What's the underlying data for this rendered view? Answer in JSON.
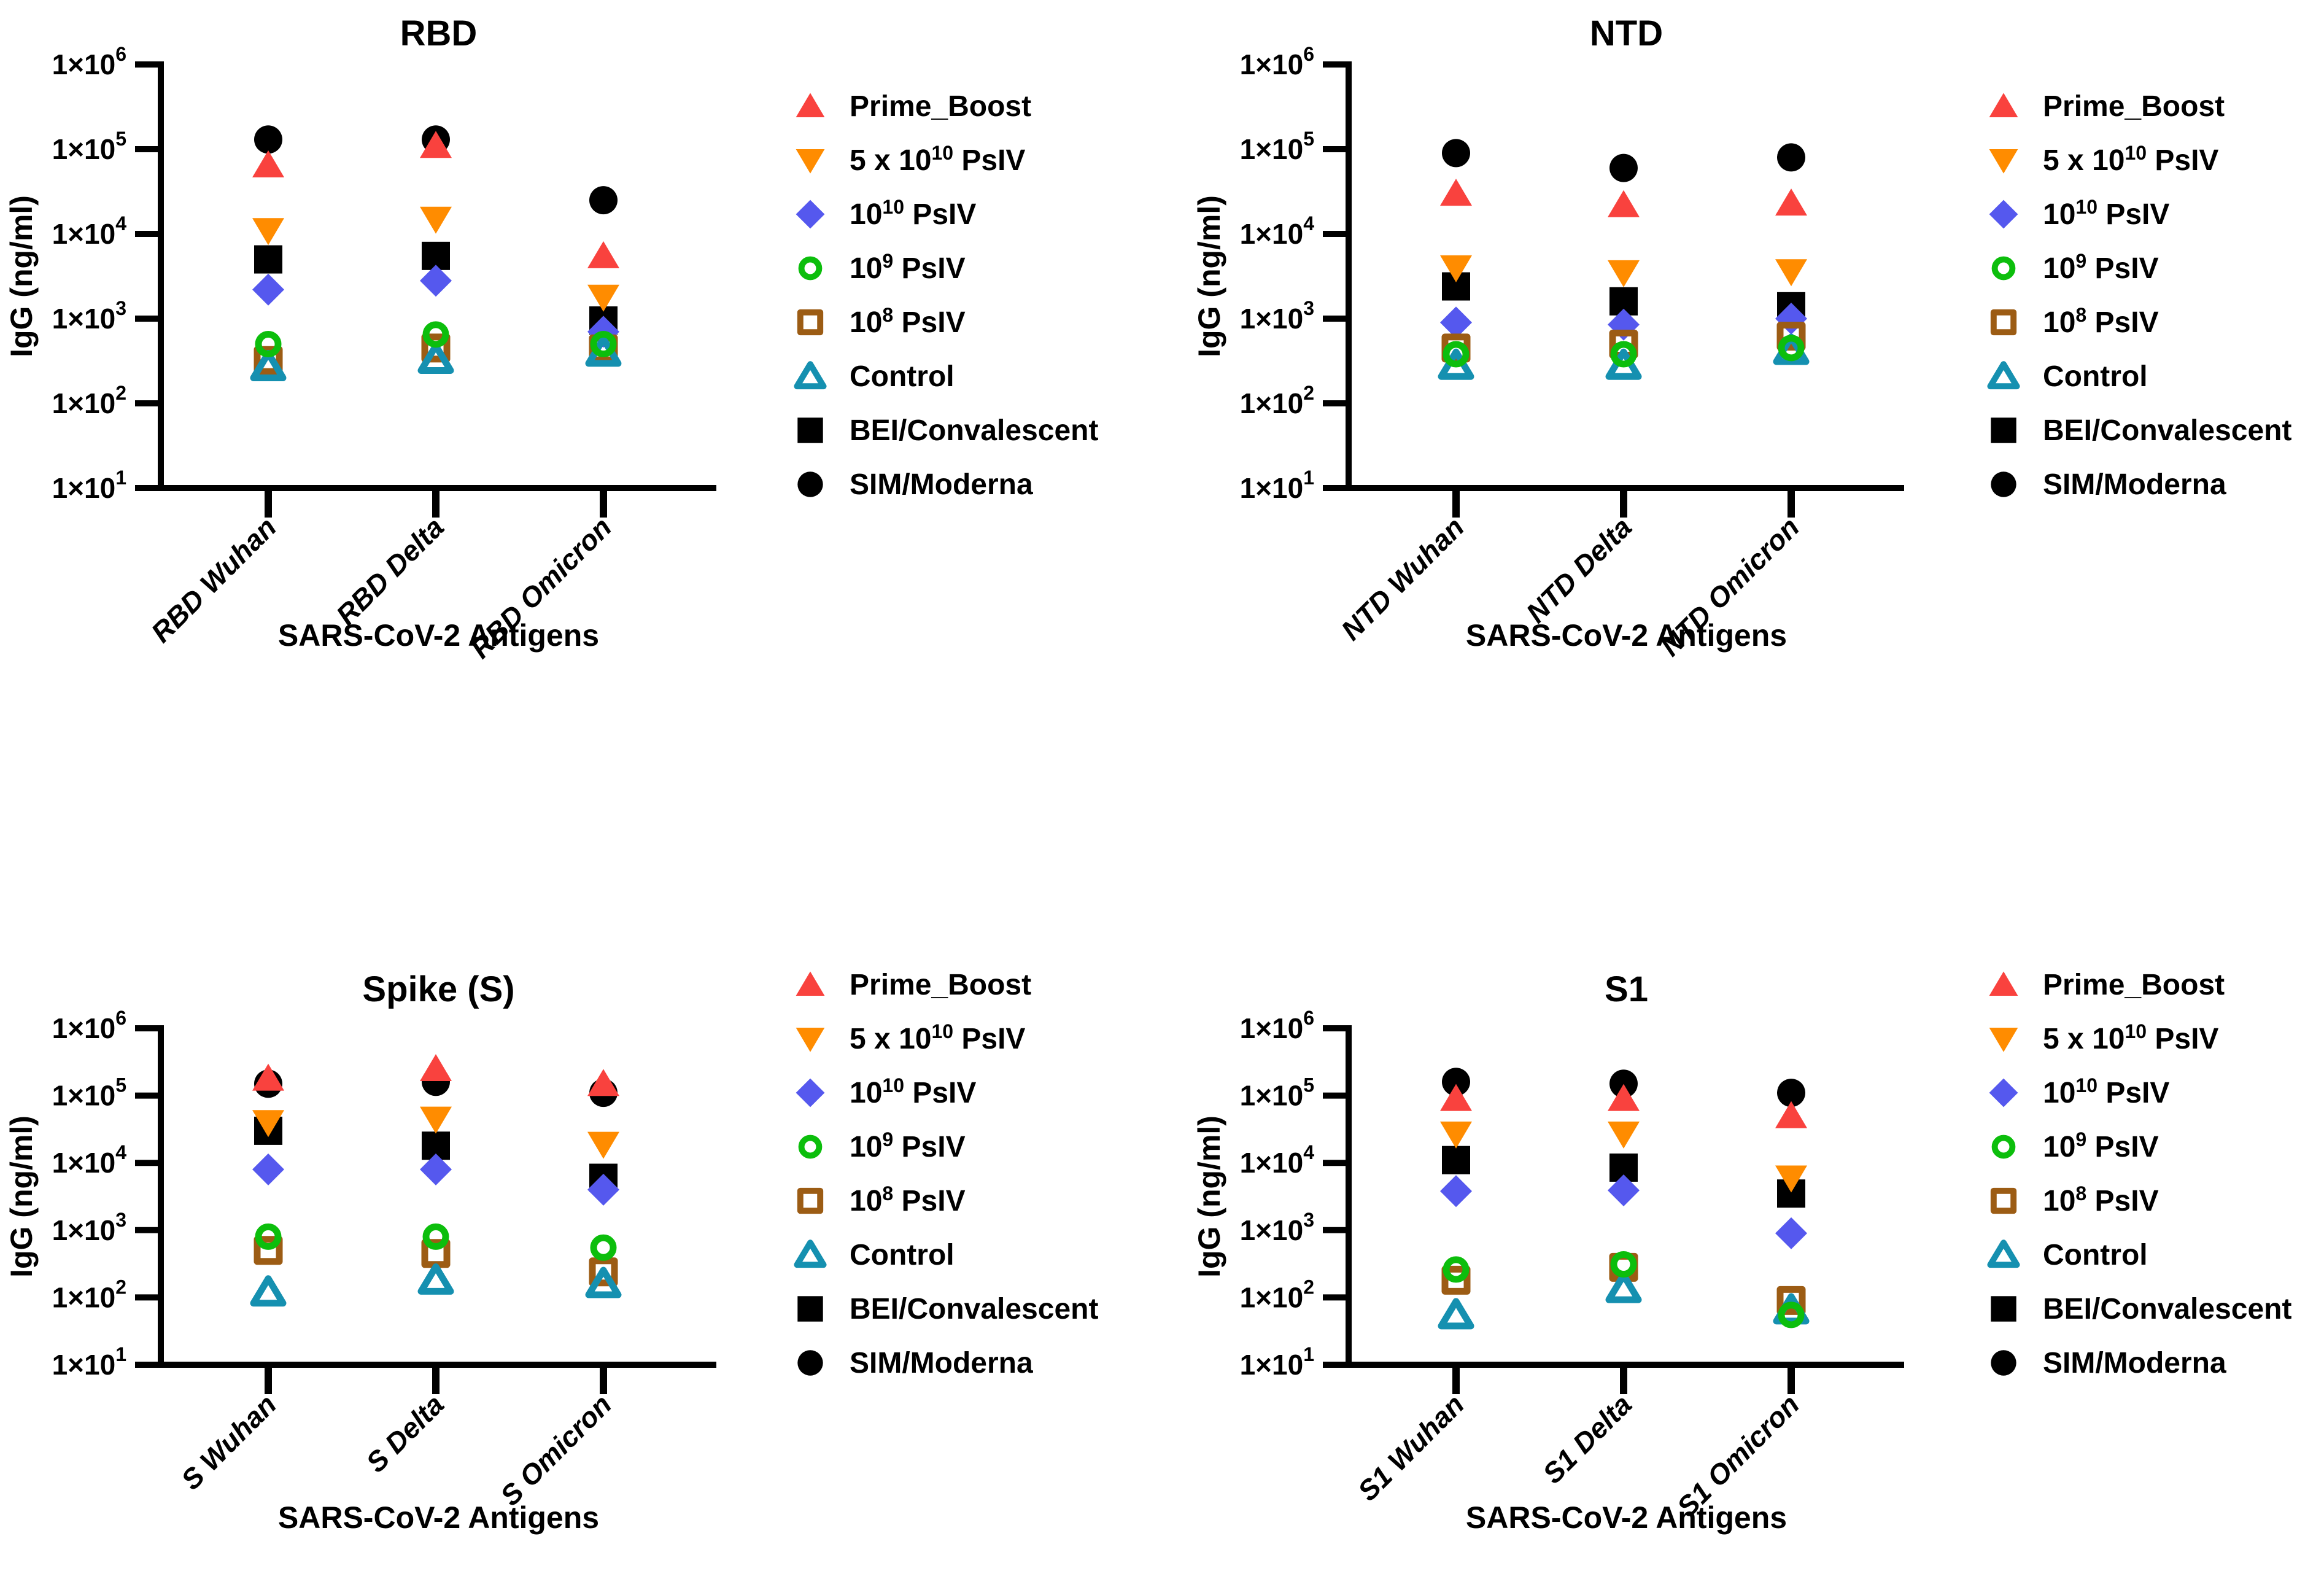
{
  "figure": {
    "background": "#FFFFFF"
  },
  "y_axis": {
    "label": "IgG (ng/ml)",
    "tick_base": "1×10",
    "tick_exponents": [
      "6",
      "5",
      "4",
      "3",
      "2",
      "1"
    ]
  },
  "x_axis": {
    "label": "SARS-CoV-2 Antigens"
  },
  "legend_entries": [
    {
      "name": "Prime_Boost",
      "label_pre": "Prime_Boost",
      "label_sup": "",
      "label_post": "",
      "marker": "triangle-up",
      "fill": "solid",
      "color": "#F9423E"
    },
    {
      "name": "5 x 10^10 PsIV",
      "label_pre": "5 x 10",
      "label_sup": "10",
      "label_post": " PsIV",
      "marker": "triangle-down",
      "fill": "solid",
      "color": "#FF8C00"
    },
    {
      "name": "10^10 PsIV",
      "label_pre": "10",
      "label_sup": "10",
      "label_post": " PsIV",
      "marker": "diamond",
      "fill": "solid",
      "color": "#5558EE"
    },
    {
      "name": "10^9 PsIV",
      "label_pre": "10",
      "label_sup": "9",
      "label_post": " PsIV",
      "marker": "circle",
      "fill": "open",
      "color": "#0CBE0C"
    },
    {
      "name": "10^8 PsIV",
      "label_pre": "10",
      "label_sup": "8",
      "label_post": " PsIV",
      "marker": "square",
      "fill": "open",
      "color": "#9C5C14"
    },
    {
      "name": "Control",
      "label_pre": "Control",
      "label_sup": "",
      "label_post": "",
      "marker": "triangle-up",
      "fill": "open",
      "color": "#1590B0"
    },
    {
      "name": "BEI/Convalescent",
      "label_pre": "BEI/Convalescent",
      "label_sup": "",
      "label_post": "",
      "marker": "square",
      "fill": "solid",
      "color": "#000000"
    },
    {
      "name": "SIM/Moderna",
      "label_pre": "SIM/Moderna",
      "label_sup": "",
      "label_post": "",
      "marker": "circle",
      "fill": "solid",
      "color": "#000000"
    }
  ],
  "draw_order": [
    7,
    6,
    0,
    1,
    2,
    4,
    5,
    3
  ],
  "chart_data": [
    {
      "type": "scatter",
      "title": "RBD",
      "log_y": true,
      "ylim": [
        10,
        1000000
      ],
      "xlabel": "SARS-CoV-2 Antigens",
      "ylabel": "IgG (ng/ml)",
      "grid": false,
      "legend_position": "right",
      "categories": [
        "RBD Wuhan",
        "RBD Delta",
        "RBD Omicron"
      ],
      "series": [
        {
          "name": "Prime_Boost",
          "values": [
            65000,
            110000,
            5500
          ]
        },
        {
          "name": "5 x 10^10 PsIV",
          "values": [
            11000,
            15000,
            1800
          ]
        },
        {
          "name": "10^10 PsIV",
          "values": [
            2200,
            2800,
            700
          ]
        },
        {
          "name": "10^9 PsIV",
          "values": [
            500,
            650,
            500
          ]
        },
        {
          "name": "10^8 PsIV",
          "values": [
            320,
            450,
            440
          ]
        },
        {
          "name": "Control",
          "values": [
            270,
            330,
            400
          ]
        },
        {
          "name": "BEI/Convalescent",
          "values": [
            5000,
            5500,
            950
          ]
        },
        {
          "name": "SIM/Moderna",
          "values": [
            130000,
            130000,
            25000
          ]
        }
      ]
    },
    {
      "type": "scatter",
      "title": "NTD",
      "log_y": true,
      "ylim": [
        10,
        1000000
      ],
      "xlabel": "SARS-CoV-2 Antigens",
      "ylabel": "IgG (ng/ml)",
      "grid": false,
      "legend_position": "right",
      "categories": [
        "NTD Wuhan",
        "NTD Delta",
        "NTD Omicron"
      ],
      "series": [
        {
          "name": "Prime_Boost",
          "values": [
            30000,
            22000,
            23000
          ]
        },
        {
          "name": "5 x 10^10 PsIV",
          "values": [
            4000,
            3500,
            3600
          ]
        },
        {
          "name": "10^10 PsIV",
          "values": [
            900,
            850,
            1000
          ]
        },
        {
          "name": "10^9 PsIV",
          "values": [
            380,
            380,
            450
          ]
        },
        {
          "name": "10^8 PsIV",
          "values": [
            450,
            500,
            620
          ]
        },
        {
          "name": "Control",
          "values": [
            280,
            280,
            420
          ]
        },
        {
          "name": "BEI/Convalescent",
          "values": [
            2400,
            1600,
            1400
          ]
        },
        {
          "name": "SIM/Moderna",
          "values": [
            90000,
            60000,
            80000
          ]
        }
      ]
    },
    {
      "type": "scatter",
      "title": "Spike (S)",
      "log_y": true,
      "ylim": [
        10,
        1000000
      ],
      "xlabel": "SARS-CoV-2 Antigens",
      "ylabel": "IgG (ng/ml)",
      "grid": false,
      "legend_position": "right",
      "categories": [
        "S Wuhan",
        "S Delta",
        "S Omicron"
      ],
      "series": [
        {
          "name": "Prime_Boost",
          "values": [
            180000,
            250000,
            150000
          ]
        },
        {
          "name": "5 x 10^10 PsIV",
          "values": [
            40000,
            45000,
            19000
          ]
        },
        {
          "name": "10^10 PsIV",
          "values": [
            8000,
            8000,
            4000
          ]
        },
        {
          "name": "10^9 PsIV",
          "values": [
            800,
            800,
            550
          ]
        },
        {
          "name": "10^8 PsIV",
          "values": [
            500,
            450,
            240
          ]
        },
        {
          "name": "Control",
          "values": [
            120,
            180,
            160
          ]
        },
        {
          "name": "BEI/Convalescent",
          "values": [
            30000,
            18000,
            6000
          ]
        },
        {
          "name": "SIM/Moderna",
          "values": [
            150000,
            160000,
            110000
          ]
        }
      ]
    },
    {
      "type": "scatter",
      "title": "S1",
      "log_y": true,
      "ylim": [
        10,
        1000000
      ],
      "xlabel": "SARS-CoV-2 Antigens",
      "ylabel": "IgG (ng/ml)",
      "grid": false,
      "legend_position": "right",
      "categories": [
        "S1 Wuhan",
        "S1 Delta",
        "S1 Omicron"
      ],
      "series": [
        {
          "name": "Prime_Boost",
          "values": [
            90000,
            90000,
            50000
          ]
        },
        {
          "name": "5 x 10^10 PsIV",
          "values": [
            27000,
            27000,
            6000
          ]
        },
        {
          "name": "10^10 PsIV",
          "values": [
            3800,
            3900,
            900
          ]
        },
        {
          "name": "10^9 PsIV",
          "values": [
            260,
            310,
            55
          ]
        },
        {
          "name": "10^8 PsIV",
          "values": [
            180,
            280,
            90
          ]
        },
        {
          "name": "Control",
          "values": [
            55,
            135,
            65
          ]
        },
        {
          "name": "BEI/Convalescent",
          "values": [
            11000,
            8500,
            3500
          ]
        },
        {
          "name": "SIM/Moderna",
          "values": [
            160000,
            150000,
            110000
          ]
        }
      ]
    }
  ]
}
